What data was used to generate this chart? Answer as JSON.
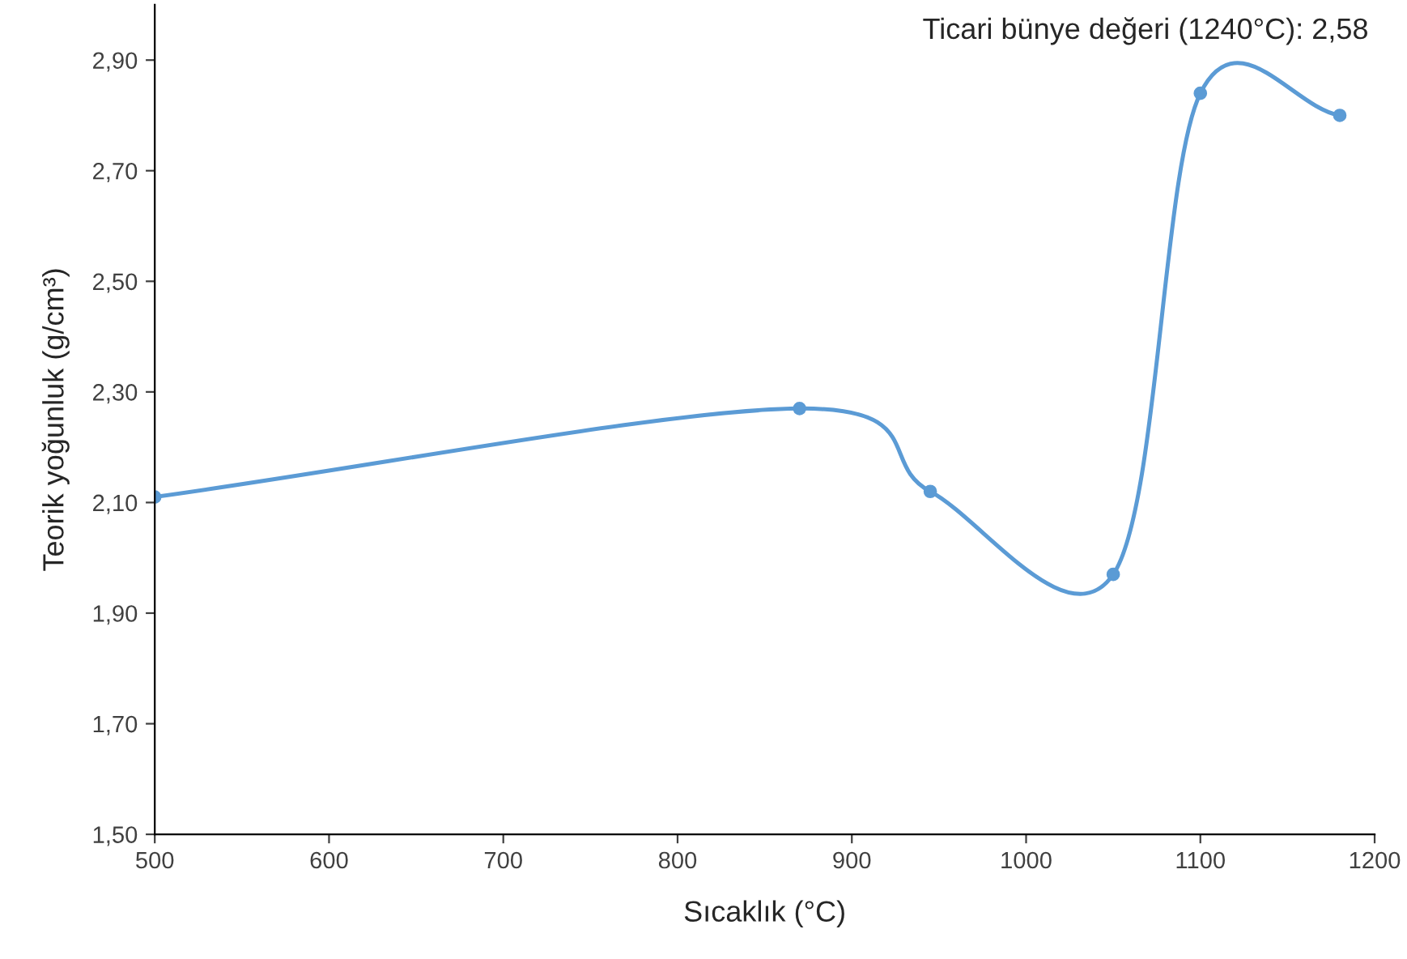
{
  "chart_data": {
    "type": "line",
    "xlabel": "Sıcaklık (°C)",
    "ylabel": "Teorik yoğunluk (g/cm³)",
    "annotations": [
      "Ticari bünye değeri (1240°C): 2,58"
    ],
    "x": [
      500,
      870,
      945,
      1050,
      1100,
      1180
    ],
    "series": [
      {
        "color": "#5b9bd5",
        "values": [
          2.11,
          2.27,
          2.12,
          1.97,
          2.84,
          2.8
        ]
      }
    ],
    "xlim": [
      500,
      1200
    ],
    "xticks": [
      500,
      600,
      700,
      800,
      900,
      1000,
      1100,
      1200
    ],
    "ylim": [
      1.5,
      3.0
    ],
    "yticks": [
      {
        "value": 1.5,
        "label": "1,50"
      },
      {
        "value": 1.7,
        "label": "1,70"
      },
      {
        "value": 1.9,
        "label": "1,90"
      },
      {
        "value": 2.1,
        "label": "2,10"
      },
      {
        "value": 2.3,
        "label": "2,30"
      },
      {
        "value": 2.5,
        "label": "2,50"
      },
      {
        "value": 2.7,
        "label": "2,70"
      },
      {
        "value": 2.9,
        "label": "2,90"
      }
    ],
    "grid": false,
    "legend": false,
    "marker": "circle",
    "line_style": "solid"
  }
}
